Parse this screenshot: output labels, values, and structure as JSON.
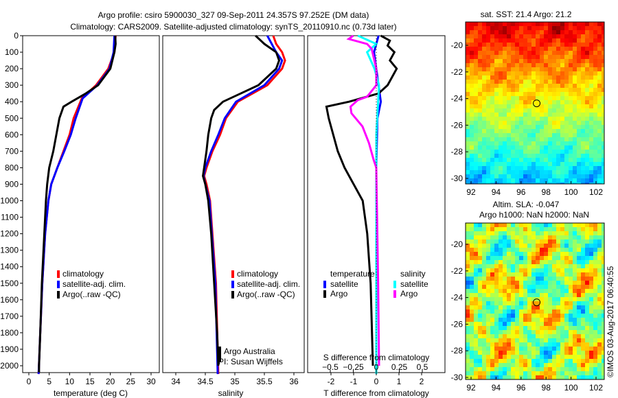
{
  "title_line1": "Argo profile: csiro 5900030_327 09-Sep-2011 24.357S 97.252E (DM data)",
  "title_line2": "Climatology: CARS2009. Satellite-adjusted climatology: synTS_20110910.nc (0.73d later)",
  "chart_data": [
    {
      "type": "line",
      "name": "temperature",
      "xlabel": "temperature (deg C)",
      "xlim": [
        -1,
        31
      ],
      "ylim": [
        2050,
        0
      ],
      "xticks": [
        "0",
        "5",
        "10",
        "15",
        "20",
        "25",
        "30"
      ],
      "yticks": [
        "0",
        "100",
        "200",
        "300",
        "400",
        "500",
        "600",
        "700",
        "800",
        "900",
        "1000",
        "1100",
        "1200",
        "1300",
        "1400",
        "1500",
        "1600",
        "1700",
        "1800",
        "1900",
        "2000"
      ],
      "legend": [
        "climatology",
        "satellite-adj. clim.",
        "Argo(..raw -QC)"
      ],
      "series": [
        {
          "name": "climatology",
          "color": "#ff0000",
          "points": [
            [
              0,
              21.3
            ],
            [
              100,
              21
            ],
            [
              200,
              19.5
            ],
            [
              300,
              16.5
            ],
            [
              380,
              13
            ],
            [
              500,
              11
            ],
            [
              600,
              10
            ],
            [
              700,
              8.5
            ],
            [
              800,
              7
            ],
            [
              900,
              5.5
            ],
            [
              1000,
              4.8
            ],
            [
              1200,
              4
            ],
            [
              1500,
              3.3
            ],
            [
              1800,
              2.8
            ],
            [
              2050,
              2.4
            ]
          ]
        },
        {
          "name": "satellite-adj. clim.",
          "color": "#0000ff",
          "points": [
            [
              0,
              21.0
            ],
            [
              100,
              20.8
            ],
            [
              200,
              19.8
            ],
            [
              300,
              16.8
            ],
            [
              380,
              13.2
            ],
            [
              500,
              11.5
            ],
            [
              600,
              10.3
            ],
            [
              700,
              8.7
            ],
            [
              800,
              7
            ],
            [
              900,
              5.5
            ],
            [
              1000,
              4.8
            ],
            [
              1200,
              4
            ],
            [
              1500,
              3.3
            ],
            [
              1800,
              2.8
            ],
            [
              2050,
              2.4
            ]
          ]
        },
        {
          "name": "Argo(..raw -QC)",
          "color": "#000000",
          "points": [
            [
              0,
              21.2
            ],
            [
              50,
              21.3
            ],
            [
              100,
              21
            ],
            [
              200,
              20
            ],
            [
              300,
              17
            ],
            [
              350,
              14
            ],
            [
              400,
              10.5
            ],
            [
              430,
              8.5
            ],
            [
              500,
              7.5
            ],
            [
              700,
              6
            ],
            [
              800,
              5
            ],
            [
              900,
              4.5
            ],
            [
              1000,
              4.2
            ],
            [
              1200,
              3.8
            ],
            [
              1500,
              3.2
            ],
            [
              1800,
              2.8
            ],
            [
              2000,
              2.5
            ],
            [
              2040,
              2.5
            ]
          ]
        }
      ]
    },
    {
      "type": "line",
      "name": "salinity",
      "xlabel": "salinity",
      "xlim": [
        33.8,
        36.2
      ],
      "ylim": [
        2050,
        0
      ],
      "xticks": [
        "34",
        "34.5",
        "35",
        "35.5",
        "36"
      ],
      "legend": [
        "climatology",
        "satellite-adj. clim.",
        "Argo(..raw -QC)"
      ],
      "annotation": [
        "Argo Australia",
        "PI: Susan Wijffels"
      ],
      "series": [
        {
          "name": "climatology",
          "color": "#ff0000",
          "points": [
            [
              0,
              35.65
            ],
            [
              50,
              35.7
            ],
            [
              100,
              35.8
            ],
            [
              150,
              35.85
            ],
            [
              200,
              35.8
            ],
            [
              300,
              35.55
            ],
            [
              400,
              35.05
            ],
            [
              500,
              34.85
            ],
            [
              600,
              34.75
            ],
            [
              700,
              34.62
            ],
            [
              800,
              34.52
            ],
            [
              850,
              34.48
            ],
            [
              900,
              34.52
            ],
            [
              1000,
              34.58
            ],
            [
              1500,
              34.68
            ],
            [
              2050,
              34.72
            ]
          ]
        },
        {
          "name": "satellite-adj. clim.",
          "color": "#0000ff",
          "points": [
            [
              0,
              35.55
            ],
            [
              100,
              35.7
            ],
            [
              150,
              35.8
            ],
            [
              200,
              35.75
            ],
            [
              300,
              35.5
            ],
            [
              400,
              35.02
            ],
            [
              500,
              34.83
            ],
            [
              600,
              34.72
            ],
            [
              700,
              34.6
            ],
            [
              800,
              34.5
            ],
            [
              850,
              34.47
            ],
            [
              900,
              34.5
            ],
            [
              1000,
              34.57
            ],
            [
              1500,
              34.67
            ],
            [
              2050,
              34.71
            ]
          ]
        },
        {
          "name": "Argo(..raw -QC)",
          "color": "#000000",
          "points": [
            [
              0,
              35.35
            ],
            [
              50,
              35.5
            ],
            [
              100,
              35.7
            ],
            [
              150,
              35.75
            ],
            [
              200,
              35.7
            ],
            [
              300,
              35.4
            ],
            [
              350,
              35.1
            ],
            [
              400,
              34.8
            ],
            [
              450,
              34.65
            ],
            [
              500,
              34.6
            ],
            [
              600,
              34.55
            ],
            [
              700,
              34.52
            ],
            [
              800,
              34.48
            ],
            [
              850,
              34.46
            ],
            [
              900,
              34.5
            ],
            [
              1000,
              34.55
            ],
            [
              1200,
              34.6
            ],
            [
              1500,
              34.65
            ],
            [
              1800,
              34.7
            ],
            [
              2000,
              34.72
            ]
          ]
        }
      ]
    },
    {
      "type": "line",
      "name": "difference",
      "xlabel": "T difference from climatology",
      "x2label": "S difference from climatology",
      "xlim": [
        -3.1,
        2.2
      ],
      "xticks": [
        "-2",
        "-1",
        "0",
        "1",
        "2"
      ],
      "x2ticks": [
        "-0.5",
        "-0.25",
        "0",
        "0.25",
        "0.5"
      ],
      "ylim": [
        2050,
        0
      ],
      "legend_titles": [
        "temperature",
        "salinity"
      ],
      "legend": [
        "satellite",
        "Argo",
        "satellite",
        "Argo"
      ],
      "series": [
        {
          "name": "T satellite",
          "color": "#0000ff",
          "unit": "T",
          "points": [
            [
              0,
              0.1
            ],
            [
              100,
              -0.1
            ],
            [
              200,
              0
            ],
            [
              300,
              0.1
            ],
            [
              400,
              0.2
            ],
            [
              500,
              0.05
            ],
            [
              800,
              0
            ],
            [
              2050,
              0
            ]
          ]
        },
        {
          "name": "T Argo",
          "color": "#000000",
          "unit": "T",
          "points": [
            [
              0,
              0.2
            ],
            [
              30,
              0.6
            ],
            [
              60,
              0.5
            ],
            [
              100,
              0.8
            ],
            [
              150,
              0.6
            ],
            [
              200,
              0.9
            ],
            [
              300,
              0.5
            ],
            [
              350,
              0.1
            ],
            [
              400,
              -1.2
            ],
            [
              430,
              -2.2
            ],
            [
              500,
              -2.1
            ],
            [
              700,
              -1.7
            ],
            [
              800,
              -1.4
            ],
            [
              900,
              -1.0
            ],
            [
              1000,
              -0.6
            ],
            [
              1200,
              -0.4
            ],
            [
              1500,
              -0.25
            ],
            [
              2000,
              -0.15
            ]
          ]
        },
        {
          "name": "S satellite",
          "color": "#00ffff",
          "unit": "S",
          "points": [
            [
              0,
              -0.2
            ],
            [
              50,
              0
            ],
            [
              100,
              -0.1
            ],
            [
              200,
              -0.02
            ],
            [
              300,
              0.03
            ],
            [
              400,
              0.02
            ],
            [
              600,
              0
            ],
            [
              2050,
              0
            ]
          ]
        },
        {
          "name": "S Argo",
          "color": "#ff00ff",
          "unit": "S",
          "points": [
            [
              0,
              -0.25
            ],
            [
              20,
              -0.3
            ],
            [
              50,
              -0.1
            ],
            [
              80,
              -0.05
            ],
            [
              200,
              0
            ],
            [
              300,
              0
            ],
            [
              370,
              -0.1
            ],
            [
              390,
              -0.2
            ],
            [
              430,
              -0.28
            ],
            [
              470,
              -0.27
            ],
            [
              550,
              -0.15
            ],
            [
              650,
              -0.08
            ],
            [
              750,
              -0.03
            ],
            [
              800,
              0
            ],
            [
              1500,
              0.02
            ],
            [
              2000,
              0.03
            ]
          ]
        }
      ]
    }
  ],
  "map_top": {
    "title": "sat. SST: 21.4 Argo: 21.2",
    "xticks": [
      "92",
      "94",
      "96",
      "98",
      "100",
      "102"
    ],
    "yticks": [
      "-20",
      "-22",
      "-24",
      "-26",
      "-28",
      "-30"
    ],
    "argo_lon": 97.25,
    "argo_lat": -24.36
  },
  "map_bottom": {
    "title1": "Altim. SLA: -0.047",
    "title2": "Argo h1000: NaN h2000: NaN",
    "xticks": [
      "92",
      "94",
      "96",
      "98",
      "100",
      "102"
    ],
    "yticks": [
      "-20",
      "-22",
      "-24",
      "-26",
      "-28",
      "-30"
    ],
    "argo_lon": 97.25,
    "argo_lat": -24.36
  },
  "stamp": "©IMOS 03-Aug-2017 06:40:55"
}
